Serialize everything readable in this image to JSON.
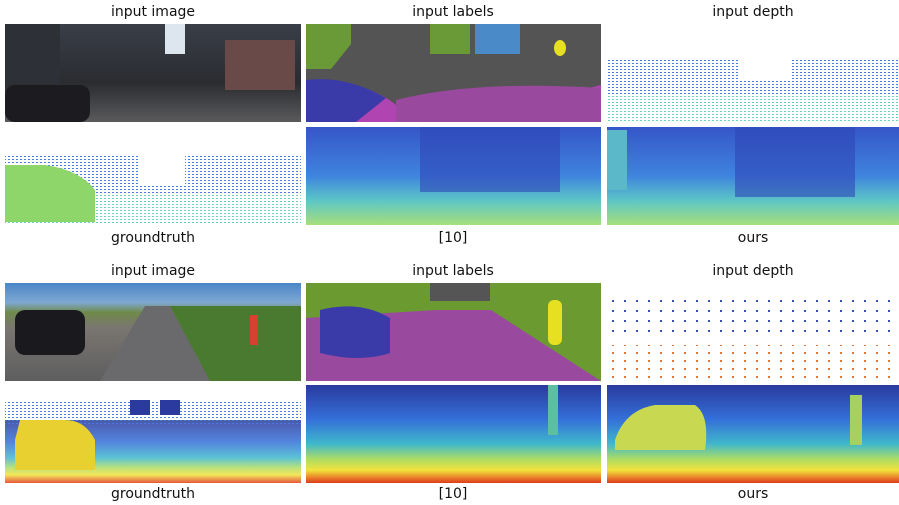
{
  "figures": [
    {
      "top_labels": [
        "input image",
        "input labels",
        "input depth"
      ],
      "bottom_labels": [
        "groundtruth",
        "[10]",
        "ours"
      ]
    },
    {
      "top_labels": [
        "input image",
        "input labels",
        "input depth"
      ],
      "bottom_labels": [
        "groundtruth",
        "[10]",
        "ours"
      ]
    }
  ]
}
